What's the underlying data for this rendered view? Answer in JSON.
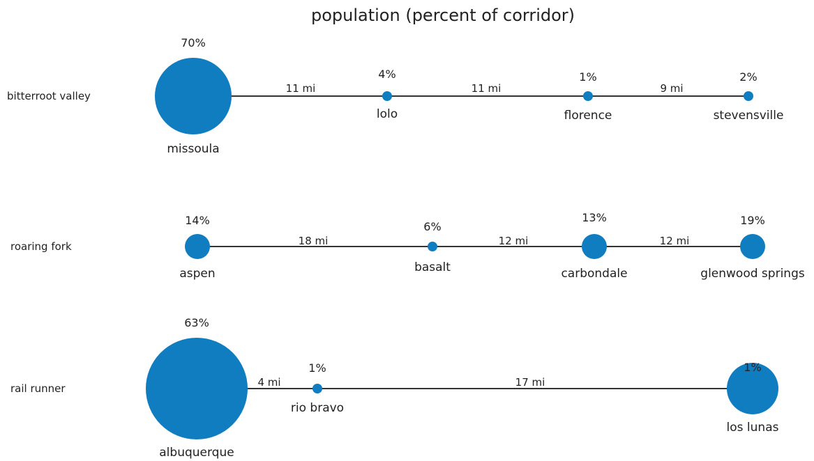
{
  "title": "population (percent of corridor)",
  "colors": {
    "node": "#0f7dc0",
    "line": "#333333",
    "text": "#222222"
  },
  "corridors": [
    {
      "name": "bitterroot valley",
      "stops": [
        {
          "city": "missoula",
          "percent": 70,
          "percent_label": "70%"
        },
        {
          "city": "lolo",
          "percent": 4,
          "percent_label": "4%"
        },
        {
          "city": "florence",
          "percent": 1,
          "percent_label": "1%"
        },
        {
          "city": "stevensville",
          "percent": 2,
          "percent_label": "2%"
        }
      ],
      "segments": [
        {
          "miles": 11,
          "label": "11 mi"
        },
        {
          "miles": 11,
          "label": "11 mi"
        },
        {
          "miles": 9,
          "label": "9 mi"
        }
      ]
    },
    {
      "name": "roaring fork",
      "stops": [
        {
          "city": "aspen",
          "percent": 14,
          "percent_label": "14%"
        },
        {
          "city": "basalt",
          "percent": 6,
          "percent_label": "6%"
        },
        {
          "city": "carbondale",
          "percent": 13,
          "percent_label": "13%"
        },
        {
          "city": "glenwood springs",
          "percent": 19,
          "percent_label": "19%"
        }
      ],
      "segments": [
        {
          "miles": 18,
          "label": "18 mi"
        },
        {
          "miles": 12,
          "label": "12 mi"
        },
        {
          "miles": 12,
          "label": "12 mi"
        }
      ]
    },
    {
      "name": "rail runner",
      "stops": [
        {
          "city": "albuquerque",
          "percent": 63,
          "percent_label": "63%"
        },
        {
          "city": "rio bravo",
          "percent": 1,
          "percent_label": "1%"
        },
        {
          "city": "los lunas",
          "percent": 1,
          "percent_label": "1%"
        }
      ],
      "segments": [
        {
          "miles": 4,
          "label": "4 mi"
        },
        {
          "miles": 17,
          "label": "17 mi"
        }
      ]
    }
  ]
}
